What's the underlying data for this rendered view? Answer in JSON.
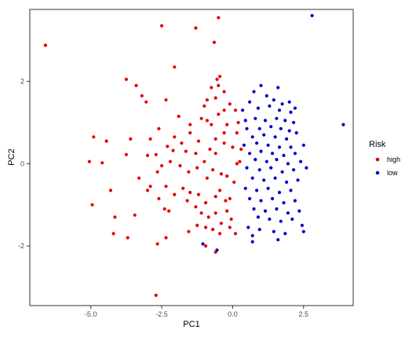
{
  "chart_data": {
    "type": "scatter",
    "xlabel": "PC1",
    "ylabel": "PC2",
    "xlim": [
      -7.15,
      4.25
    ],
    "ylim": [
      -3.45,
      3.75
    ],
    "xticks": [
      -5.0,
      -2.5,
      0.0,
      2.5
    ],
    "xtick_labels": [
      "-5.0",
      "-2.5",
      "0.0",
      "2.5"
    ],
    "yticks": [
      -2,
      0,
      2
    ],
    "ytick_labels": [
      "-2",
      "0",
      "2"
    ],
    "grid": false,
    "legend": {
      "title": "Risk",
      "position": "right"
    },
    "colors": {
      "high": "#e60000",
      "low": "#0000cc"
    },
    "series": [
      {
        "name": "high",
        "points": [
          [
            -6.6,
            2.88
          ],
          [
            -2.5,
            3.35
          ],
          [
            -0.5,
            3.55
          ],
          [
            -1.3,
            3.3
          ],
          [
            -0.65,
            2.95
          ],
          [
            -3.75,
            2.05
          ],
          [
            -3.4,
            1.9
          ],
          [
            -3.2,
            1.65
          ],
          [
            -3.05,
            1.5
          ],
          [
            -2.05,
            2.35
          ],
          [
            -0.3,
            1.75
          ],
          [
            -0.5,
            1.9
          ],
          [
            -0.75,
            1.85
          ],
          [
            -0.55,
            2.05
          ],
          [
            -0.45,
            2.12
          ],
          [
            -0.6,
            1.6
          ],
          [
            -0.9,
            1.55
          ],
          [
            -1.0,
            1.4
          ],
          [
            -2.35,
            1.55
          ],
          [
            -1.9,
            1.15
          ],
          [
            -1.5,
            0.95
          ],
          [
            -1.1,
            1.1
          ],
          [
            -0.9,
            1.05
          ],
          [
            -0.75,
            0.95
          ],
          [
            -0.5,
            1.2
          ],
          [
            -0.3,
            1.3
          ],
          [
            -0.1,
            1.45
          ],
          [
            -0.2,
            0.95
          ],
          [
            -0.3,
            0.75
          ],
          [
            0.1,
            1.3
          ],
          [
            0.2,
            1.0
          ],
          [
            0.15,
            0.75
          ],
          [
            -4.9,
            0.65
          ],
          [
            -4.45,
            0.55
          ],
          [
            -3.6,
            0.6
          ],
          [
            -2.6,
            0.85
          ],
          [
            -2.9,
            0.6
          ],
          [
            -2.05,
            0.65
          ],
          [
            -1.5,
            0.75
          ],
          [
            -1.8,
            0.5
          ],
          [
            -1.2,
            0.55
          ],
          [
            -0.6,
            0.6
          ],
          [
            -0.3,
            0.5
          ],
          [
            -5.05,
            0.05
          ],
          [
            -4.6,
            0.02
          ],
          [
            -3.75,
            0.22
          ],
          [
            -3.0,
            0.2
          ],
          [
            -2.7,
            0.22
          ],
          [
            -2.3,
            0.42
          ],
          [
            -2.1,
            0.32
          ],
          [
            -1.65,
            0.3
          ],
          [
            -1.3,
            0.25
          ],
          [
            -0.8,
            0.35
          ],
          [
            -0.6,
            0.25
          ],
          [
            0.0,
            0.4
          ],
          [
            0.25,
            0.05
          ],
          [
            0.3,
            0.35
          ],
          [
            0.15,
            0.0
          ],
          [
            -3.3,
            -0.35
          ],
          [
            -2.9,
            -0.55
          ],
          [
            -2.65,
            -0.2
          ],
          [
            -2.5,
            -0.05
          ],
          [
            -2.2,
            0.05
          ],
          [
            -1.85,
            -0.05
          ],
          [
            -1.55,
            -0.2
          ],
          [
            -1.25,
            -0.1
          ],
          [
            -1.0,
            0.05
          ],
          [
            -0.9,
            -0.35
          ],
          [
            -0.7,
            -0.15
          ],
          [
            -0.4,
            -0.25
          ],
          [
            -0.2,
            -0.3
          ],
          [
            0.05,
            -0.45
          ],
          [
            -4.3,
            -0.65
          ],
          [
            -3.0,
            -0.65
          ],
          [
            -2.6,
            -0.85
          ],
          [
            -2.35,
            -0.55
          ],
          [
            -2.05,
            -0.75
          ],
          [
            -1.75,
            -0.6
          ],
          [
            -1.5,
            -0.7
          ],
          [
            -1.2,
            -0.75
          ],
          [
            -0.95,
            -0.95
          ],
          [
            -0.6,
            -0.8
          ],
          [
            -0.45,
            -0.65
          ],
          [
            -0.25,
            -0.9
          ],
          [
            -0.1,
            -0.85
          ],
          [
            -4.95,
            -1.0
          ],
          [
            -4.15,
            -1.3
          ],
          [
            -3.45,
            -1.25
          ],
          [
            -2.4,
            -1.1
          ],
          [
            -2.25,
            -1.15
          ],
          [
            -1.6,
            -0.9
          ],
          [
            -1.3,
            -1.05
          ],
          [
            -1.1,
            -1.2
          ],
          [
            -0.85,
            -1.3
          ],
          [
            -0.6,
            -1.2
          ],
          [
            -0.4,
            -1.45
          ],
          [
            -0.2,
            -1.15
          ],
          [
            -0.05,
            -1.35
          ],
          [
            -4.2,
            -1.7
          ],
          [
            -3.7,
            -1.8
          ],
          [
            -2.35,
            -1.8
          ],
          [
            -1.55,
            -1.65
          ],
          [
            -1.25,
            -1.5
          ],
          [
            -0.95,
            -1.55
          ],
          [
            -0.7,
            -1.6
          ],
          [
            -0.45,
            -1.7
          ],
          [
            -0.1,
            -1.55
          ],
          [
            0.1,
            -1.7
          ],
          [
            -2.65,
            -1.95
          ],
          [
            -0.95,
            -2.0
          ],
          [
            -0.6,
            -2.15
          ],
          [
            -2.7,
            -3.2
          ]
        ]
      },
      {
        "name": "low",
        "points": [
          [
            2.8,
            3.6
          ],
          [
            3.9,
            0.95
          ],
          [
            -1.05,
            -1.95
          ],
          [
            0.7,
            -1.9
          ],
          [
            -0.55,
            -2.1
          ],
          [
            0.75,
            1.75
          ],
          [
            1.0,
            1.9
          ],
          [
            1.2,
            1.65
          ],
          [
            1.6,
            1.85
          ],
          [
            1.45,
            1.55
          ],
          [
            0.6,
            1.5
          ],
          [
            1.75,
            1.45
          ],
          [
            2.0,
            1.5
          ],
          [
            2.2,
            1.35
          ],
          [
            0.35,
            1.3
          ],
          [
            0.9,
            1.35
          ],
          [
            1.3,
            1.4
          ],
          [
            1.65,
            1.3
          ],
          [
            2.05,
            1.25
          ],
          [
            0.45,
            1.05
          ],
          [
            0.8,
            1.1
          ],
          [
            1.15,
            1.05
          ],
          [
            1.55,
            1.1
          ],
          [
            1.85,
            1.05
          ],
          [
            2.15,
            1.0
          ],
          [
            0.5,
            0.85
          ],
          [
            0.95,
            0.85
          ],
          [
            1.35,
            0.9
          ],
          [
            1.7,
            0.85
          ],
          [
            2.0,
            0.8
          ],
          [
            2.25,
            0.75
          ],
          [
            0.7,
            0.65
          ],
          [
            1.1,
            0.7
          ],
          [
            1.5,
            0.65
          ],
          [
            1.9,
            0.6
          ],
          [
            0.4,
            0.45
          ],
          [
            0.85,
            0.5
          ],
          [
            1.25,
            0.45
          ],
          [
            1.65,
            0.4
          ],
          [
            2.05,
            0.4
          ],
          [
            2.5,
            0.45
          ],
          [
            0.6,
            0.25
          ],
          [
            1.0,
            0.3
          ],
          [
            1.4,
            0.25
          ],
          [
            1.8,
            0.2
          ],
          [
            2.2,
            0.25
          ],
          [
            0.8,
            0.1
          ],
          [
            1.2,
            0.05
          ],
          [
            1.55,
            0.1
          ],
          [
            1.95,
            0.0
          ],
          [
            2.4,
            0.05
          ],
          [
            0.5,
            -0.1
          ],
          [
            0.95,
            -0.15
          ],
          [
            1.35,
            -0.1
          ],
          [
            1.75,
            -0.2
          ],
          [
            2.15,
            -0.15
          ],
          [
            2.6,
            -0.1
          ],
          [
            0.7,
            -0.35
          ],
          [
            1.1,
            -0.4
          ],
          [
            1.5,
            -0.35
          ],
          [
            1.9,
            -0.45
          ],
          [
            2.3,
            -0.4
          ],
          [
            0.45,
            -0.6
          ],
          [
            0.85,
            -0.65
          ],
          [
            1.25,
            -0.6
          ],
          [
            1.65,
            -0.7
          ],
          [
            2.05,
            -0.65
          ],
          [
            0.6,
            -0.85
          ],
          [
            1.0,
            -0.9
          ],
          [
            1.4,
            -0.85
          ],
          [
            1.8,
            -0.95
          ],
          [
            2.2,
            -0.9
          ],
          [
            0.75,
            -1.1
          ],
          [
            1.15,
            -1.15
          ],
          [
            1.55,
            -1.1
          ],
          [
            1.95,
            -1.2
          ],
          [
            2.35,
            -1.15
          ],
          [
            0.9,
            -1.3
          ],
          [
            1.3,
            -1.35
          ],
          [
            1.7,
            -1.4
          ],
          [
            2.1,
            -1.35
          ],
          [
            2.45,
            -1.5
          ],
          [
            0.55,
            -1.55
          ],
          [
            0.95,
            -1.6
          ],
          [
            1.45,
            -1.65
          ],
          [
            1.85,
            -1.7
          ],
          [
            2.5,
            -1.65
          ],
          [
            0.7,
            -1.75
          ],
          [
            1.6,
            -1.85
          ]
        ]
      }
    ]
  }
}
